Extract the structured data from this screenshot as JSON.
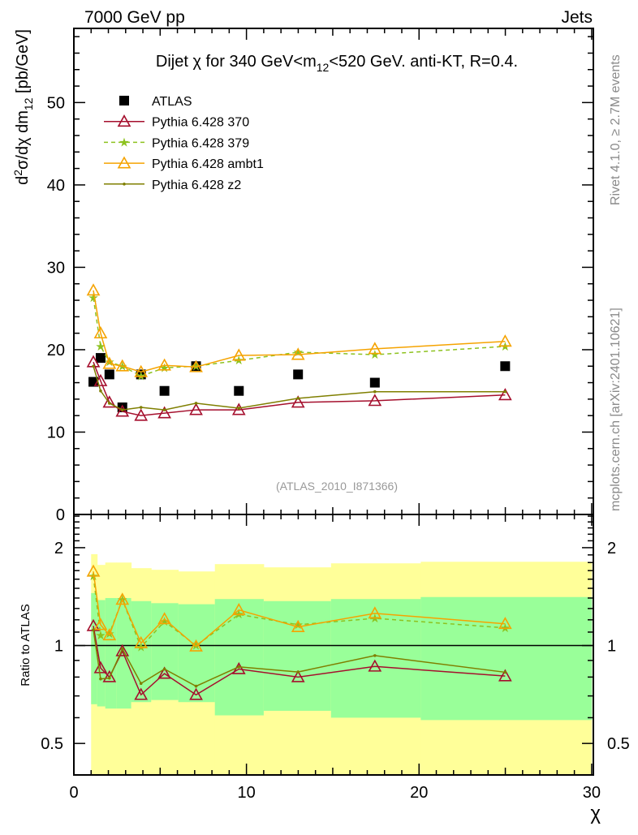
{
  "header": {
    "left": "7000 GeV pp",
    "right": "Jets"
  },
  "side_labels": {
    "rivet": "Rivet 4.1.0, ≥ 2.7M events",
    "mcplots": "mcplots.cern.ch [arXiv:2401.10621]"
  },
  "chart_data": {
    "type": "line",
    "title_parts": {
      "a": "Dijet χ for 340 GeV<m",
      "sub": "12",
      "b": "<520 GeV.  anti-KT, R=0.4."
    },
    "ylabel_parts": {
      "a": "d",
      "sup": "2",
      "b": "σ/dχ dm",
      "sub": "12",
      "c": " [pb/GeV]"
    },
    "xlabel": "χ",
    "ratio_ylabel": "Ratio to ATLAS",
    "analysis_label": "(ATLAS_2010_I871366)",
    "xlim": [
      0,
      30.1
    ],
    "ylim": [
      0,
      59
    ],
    "ratio_ylim": [
      0.4,
      2.53
    ],
    "ratio_scale": "log",
    "x_ticks": [
      "0",
      "10",
      "20",
      "30"
    ],
    "y_ticks": [
      "0",
      "10",
      "20",
      "30",
      "40",
      "50"
    ],
    "ratio_ticks": [
      "0.5",
      "1",
      "2"
    ],
    "x": [
      1.13,
      1.55,
      2.06,
      2.81,
      3.89,
      5.25,
      7.08,
      9.56,
      12.99,
      17.44,
      24.99
    ],
    "bin_edges": [
      1.0,
      1.35,
      1.82,
      2.46,
      3.32,
      4.48,
      6.05,
      8.17,
      11.0,
      14.9,
      20.1,
      30.0
    ],
    "series": [
      {
        "name": "ATLAS",
        "color": "#000000",
        "marker": "square",
        "line": "none",
        "values": [
          16.1,
          19.0,
          17.0,
          13.0,
          17.0,
          15.0,
          18.0,
          15.0,
          17.0,
          16.0,
          18.0
        ]
      },
      {
        "name": "Pythia 6.428 370",
        "color": "#a50f2d",
        "marker": "triangle",
        "line": "solid",
        "values": [
          18.5,
          16.2,
          13.6,
          12.5,
          12.0,
          12.3,
          12.7,
          12.7,
          13.6,
          13.8,
          14.5
        ]
      },
      {
        "name": "Pythia 6.428 379",
        "color": "#8dc21f",
        "marker": "star",
        "line": "dashed",
        "values": [
          26.3,
          20.4,
          18.5,
          18.0,
          16.8,
          17.8,
          18.0,
          18.7,
          19.7,
          19.4,
          20.4
        ]
      },
      {
        "name": "Pythia 6.428 ambt1",
        "color": "#f5a300",
        "marker": "triangle",
        "line": "solid",
        "values": [
          27.2,
          22.0,
          18.3,
          18.0,
          17.3,
          18.1,
          17.9,
          19.3,
          19.4,
          20.1,
          21.0
        ]
      },
      {
        "name": "Pythia 6.428 z2",
        "color": "#7f7f00",
        "marker": "dot",
        "line": "solid",
        "values": [
          18.0,
          15.0,
          13.5,
          12.7,
          13.0,
          12.7,
          13.5,
          12.9,
          14.1,
          14.9,
          14.9
        ]
      }
    ],
    "ratio_bands": {
      "inner_color": "#99ff99",
      "outer_color": "#ffff99",
      "inner_hi": [
        1.45,
        1.38,
        1.4,
        1.4,
        1.37,
        1.35,
        1.34,
        1.39,
        1.37,
        1.39,
        1.41
      ],
      "inner_lo": [
        0.66,
        0.65,
        0.64,
        0.64,
        0.67,
        0.68,
        0.67,
        0.61,
        0.63,
        0.6,
        0.59
      ],
      "outer_hi": [
        1.91,
        1.77,
        1.8,
        1.8,
        1.73,
        1.71,
        1.69,
        1.78,
        1.74,
        1.79,
        1.81
      ],
      "outer_lo": [
        0.38,
        0.38,
        0.38,
        0.38,
        0.38,
        0.38,
        0.38,
        0.38,
        0.38,
        0.38,
        0.38
      ]
    }
  }
}
